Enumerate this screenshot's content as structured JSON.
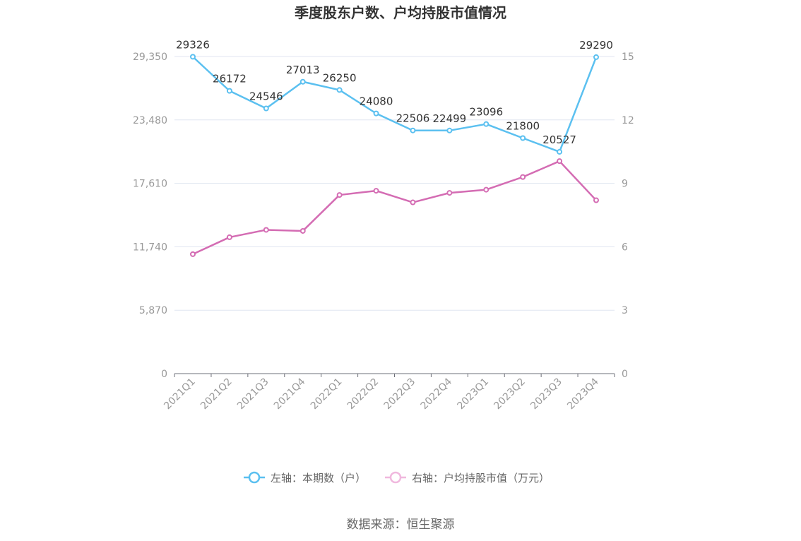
{
  "chart_data": {
    "type": "line",
    "title": "季度股东户数、户均持股市值情况",
    "categories": [
      "2021Q1",
      "2021Q2",
      "2021Q3",
      "2021Q4",
      "2022Q1",
      "2022Q2",
      "2022Q3",
      "2022Q4",
      "2023Q1",
      "2023Q2",
      "2023Q3",
      "2023Q4"
    ],
    "series": [
      {
        "name": "左轴：本期数（户）",
        "axis": "left",
        "color": "#5bc0f0",
        "values": [
          29326,
          26172,
          24546,
          27013,
          26250,
          24080,
          22506,
          22499,
          23096,
          21800,
          20527,
          29290
        ],
        "labels": [
          "29326",
          "26172",
          "24546",
          "27013",
          "26250",
          "24080",
          "22506",
          "22499",
          "23096",
          "21800",
          "20527",
          "29290"
        ]
      },
      {
        "name": "右轴：户均持股市值（万元）",
        "axis": "right",
        "color": "#d46cb3",
        "values": [
          5.65,
          6.45,
          6.8,
          6.75,
          8.45,
          8.65,
          8.1,
          8.55,
          8.7,
          9.3,
          10.05,
          8.2
        ]
      }
    ],
    "y_left": {
      "ylim": [
        0,
        29350
      ],
      "ticks": [
        "0",
        "5,870",
        "11,740",
        "17,610",
        "23,480",
        "29,350"
      ]
    },
    "y_right": {
      "ylim": [
        0,
        15
      ],
      "ticks": [
        "0",
        "3",
        "6",
        "9",
        "12",
        "15"
      ]
    },
    "grid": true,
    "legend_position": "bottom"
  },
  "source": "数据来源：恒生聚源"
}
